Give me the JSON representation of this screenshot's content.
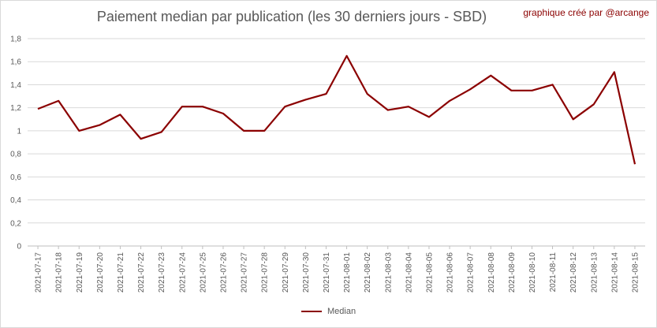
{
  "chart_data": {
    "type": "line",
    "title": "Paiement median par publication (les 30 derniers jours - SBD)",
    "credit": "graphique créé par @arcange",
    "ylim": [
      0,
      1.8
    ],
    "yticks": [
      "0",
      "0,2",
      "0,4",
      "0,6",
      "0,8",
      "1",
      "1,2",
      "1,4",
      "1,6",
      "1,8"
    ],
    "grid": true,
    "legend_position": "bottom",
    "line_color": "#8b0000",
    "categories": [
      "2021-07-17",
      "2021-07-18",
      "2021-07-19",
      "2021-07-20",
      "2021-07-21",
      "2021-07-22",
      "2021-07-23",
      "2021-07-24",
      "2021-07-25",
      "2021-07-26",
      "2021-07-27",
      "2021-07-28",
      "2021-07-29",
      "2021-07-30",
      "2021-07-31",
      "2021-08-01",
      "2021-08-02",
      "2021-08-03",
      "2021-08-04",
      "2021-08-05",
      "2021-08-06",
      "2021-08-07",
      "2021-08-08",
      "2021-08-09",
      "2021-08-10",
      "2021-08-11",
      "2021-08-12",
      "2021-08-13",
      "2021-08-14",
      "2021-08-15"
    ],
    "series": [
      {
        "name": "Median",
        "values": [
          1.19,
          1.26,
          1.0,
          1.05,
          1.14,
          0.93,
          0.99,
          1.21,
          1.21,
          1.15,
          1.0,
          1.0,
          1.21,
          1.27,
          1.32,
          1.65,
          1.32,
          1.18,
          1.21,
          1.12,
          1.26,
          1.36,
          1.48,
          1.35,
          1.35,
          1.4,
          1.1,
          1.23,
          1.51,
          0.71
        ]
      }
    ]
  }
}
